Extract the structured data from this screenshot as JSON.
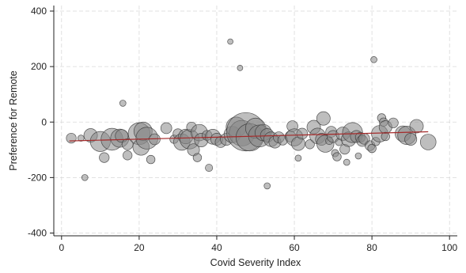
{
  "chart_data": {
    "type": "scatter",
    "title": "",
    "xlabel": "Covid Severity Index",
    "ylabel": "Preference for Remote",
    "xlim": [
      -2,
      102
    ],
    "ylim": [
      -410,
      420
    ],
    "x_ticks": [
      0,
      20,
      40,
      60,
      80,
      100
    ],
    "y_ticks": [
      -400,
      -200,
      0,
      200,
      400
    ],
    "grid": true,
    "legend": "none",
    "colors": {
      "marker_fill": "#888888",
      "marker_stroke": "#333333",
      "fit_line": "#a52a2a",
      "grid": "#d9d9d9"
    },
    "fit_line": {
      "x": [
        2,
        94.5
      ],
      "y": [
        -68,
        -35
      ]
    },
    "points": [
      {
        "x": 2.5,
        "y": -58,
        "w": 2.2
      },
      {
        "x": 5,
        "y": -58,
        "w": 1.2
      },
      {
        "x": 6,
        "y": -200,
        "w": 1.2
      },
      {
        "x": 7.5,
        "y": -48,
        "w": 3.2
      },
      {
        "x": 10,
        "y": -70,
        "w": 5
      },
      {
        "x": 11,
        "y": -128,
        "w": 2.2
      },
      {
        "x": 13,
        "y": -62,
        "w": 5.5
      },
      {
        "x": 15,
        "y": -58,
        "w": 4.5
      },
      {
        "x": 15.5,
        "y": -50,
        "w": 3
      },
      {
        "x": 15.8,
        "y": 68,
        "w": 1.2
      },
      {
        "x": 17,
        "y": -80,
        "w": 2.5
      },
      {
        "x": 17,
        "y": -120,
        "w": 2
      },
      {
        "x": 20,
        "y": -42,
        "w": 5.5
      },
      {
        "x": 20.5,
        "y": -90,
        "w": 4
      },
      {
        "x": 21,
        "y": -33,
        "w": 4.5
      },
      {
        "x": 22,
        "y": -58,
        "w": 5.5
      },
      {
        "x": 23,
        "y": -135,
        "w": 1.8
      },
      {
        "x": 24,
        "y": -62,
        "w": 2.5
      },
      {
        "x": 27,
        "y": -22,
        "w": 2.5
      },
      {
        "x": 29,
        "y": -62,
        "w": 1.8
      },
      {
        "x": 30,
        "y": -42,
        "w": 2.2
      },
      {
        "x": 31,
        "y": -72,
        "w": 4
      },
      {
        "x": 32,
        "y": -52,
        "w": 3.5
      },
      {
        "x": 33,
        "y": -62,
        "w": 4.8
      },
      {
        "x": 33.5,
        "y": -18,
        "w": 2.2
      },
      {
        "x": 34,
        "y": -100,
        "w": 2.8
      },
      {
        "x": 35,
        "y": -128,
        "w": 1.8
      },
      {
        "x": 35.5,
        "y": -38,
        "w": 4
      },
      {
        "x": 36,
        "y": -65,
        "w": 3.2
      },
      {
        "x": 37.5,
        "y": -48,
        "w": 2.2
      },
      {
        "x": 38,
        "y": -165,
        "w": 1.5
      },
      {
        "x": 39,
        "y": -53,
        "w": 3.6
      },
      {
        "x": 40,
        "y": -62,
        "w": 2.8
      },
      {
        "x": 41,
        "y": -72,
        "w": 2.5
      },
      {
        "x": 42.5,
        "y": -62,
        "w": 2.8
      },
      {
        "x": 43.5,
        "y": 290,
        "w": 1
      },
      {
        "x": 44,
        "y": -45,
        "w": 4
      },
      {
        "x": 45,
        "y": -18,
        "w": 5
      },
      {
        "x": 46,
        "y": 195,
        "w": 1
      },
      {
        "x": 46.5,
        "y": -40,
        "w": 6.5
      },
      {
        "x": 47.5,
        "y": -35,
        "w": 10
      },
      {
        "x": 48.5,
        "y": -55,
        "w": 7
      },
      {
        "x": 50,
        "y": -22,
        "w": 5
      },
      {
        "x": 51,
        "y": -50,
        "w": 5.5
      },
      {
        "x": 52,
        "y": -38,
        "w": 4
      },
      {
        "x": 53,
        "y": -48,
        "w": 3.2
      },
      {
        "x": 53,
        "y": -230,
        "w": 1.2
      },
      {
        "x": 54,
        "y": -62,
        "w": 3.5
      },
      {
        "x": 55,
        "y": -72,
        "w": 2.8
      },
      {
        "x": 56,
        "y": -55,
        "w": 2.5
      },
      {
        "x": 57,
        "y": -65,
        "w": 2.2
      },
      {
        "x": 59,
        "y": -52,
        "w": 2.5
      },
      {
        "x": 59.5,
        "y": -15,
        "w": 2.5
      },
      {
        "x": 60,
        "y": -55,
        "w": 4.2
      },
      {
        "x": 61,
        "y": -78,
        "w": 3.2
      },
      {
        "x": 61,
        "y": -130,
        "w": 1.2
      },
      {
        "x": 62,
        "y": -42,
        "w": 2.5
      },
      {
        "x": 64,
        "y": -80,
        "w": 2
      },
      {
        "x": 65,
        "y": -18,
        "w": 3.2
      },
      {
        "x": 66,
        "y": -50,
        "w": 3.8
      },
      {
        "x": 67,
        "y": -62,
        "w": 2.8
      },
      {
        "x": 67.5,
        "y": 13,
        "w": 3.2
      },
      {
        "x": 68,
        "y": -78,
        "w": 4.2
      },
      {
        "x": 69,
        "y": -68,
        "w": 1.5
      },
      {
        "x": 69.5,
        "y": -35,
        "w": 2.5
      },
      {
        "x": 70,
        "y": -52,
        "w": 2.8
      },
      {
        "x": 70.5,
        "y": -112,
        "w": 1.5
      },
      {
        "x": 71,
        "y": -125,
        "w": 1.8
      },
      {
        "x": 71.5,
        "y": -72,
        "w": 1.5
      },
      {
        "x": 72.5,
        "y": -42,
        "w": 3.2
      },
      {
        "x": 73,
        "y": -98,
        "w": 2.2
      },
      {
        "x": 73.5,
        "y": -145,
        "w": 1.2
      },
      {
        "x": 74,
        "y": -62,
        "w": 3.5
      },
      {
        "x": 75,
        "y": -38,
        "w": 5
      },
      {
        "x": 76,
        "y": -52,
        "w": 2.8
      },
      {
        "x": 76.5,
        "y": -122,
        "w": 1.2
      },
      {
        "x": 77,
        "y": -55,
        "w": 2.2
      },
      {
        "x": 77.5,
        "y": -68,
        "w": 2.5
      },
      {
        "x": 78,
        "y": -60,
        "w": 2.5
      },
      {
        "x": 79.5,
        "y": -85,
        "w": 2.2
      },
      {
        "x": 80,
        "y": -95,
        "w": 1.8
      },
      {
        "x": 80.5,
        "y": 225,
        "w": 1.2
      },
      {
        "x": 81,
        "y": -70,
        "w": 1.8
      },
      {
        "x": 82,
        "y": -42,
        "w": 4
      },
      {
        "x": 82.5,
        "y": 15,
        "w": 1.8
      },
      {
        "x": 83,
        "y": 0,
        "w": 1.8
      },
      {
        "x": 83.5,
        "y": -18,
        "w": 3
      },
      {
        "x": 83.5,
        "y": -52,
        "w": 1.8
      },
      {
        "x": 85.5,
        "y": -3,
        "w": 2.2
      },
      {
        "x": 88,
        "y": -42,
        "w": 3.8
      },
      {
        "x": 89,
        "y": -48,
        "w": 4.5
      },
      {
        "x": 90,
        "y": -62,
        "w": 2.8
      },
      {
        "x": 91.5,
        "y": -15,
        "w": 3.2
      },
      {
        "x": 94.5,
        "y": -72,
        "w": 3.8
      }
    ]
  }
}
